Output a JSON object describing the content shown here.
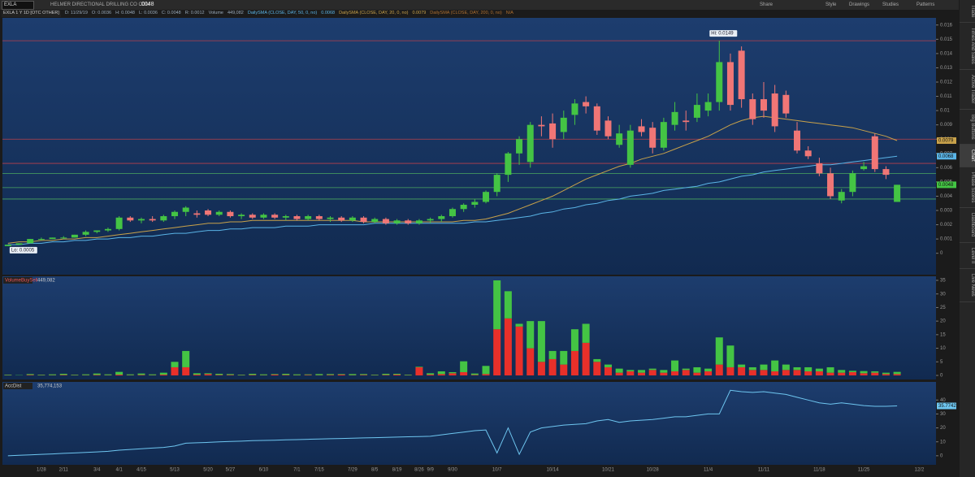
{
  "toolbar": {
    "symbol": "EXLA",
    "company": "HELMER DIRECTIONAL DRILLING CO COM",
    "last": ".0048",
    "buttons": [
      "Share",
      "Style",
      "Drawings",
      "Studies",
      "Patterns"
    ]
  },
  "header": {
    "items": [
      "EXLA 1 Y 1D [OTC OTHER]",
      "D: 11/29/19",
      "O: 0.0036",
      "H: 0.0048",
      "L: 0.0036",
      "C: 0.0048",
      "R: 0.0012",
      "Volume",
      "449,082"
    ],
    "sma200_name": "DailySMA (CLOSE, DAY, 200, 0, no)",
    "sma200_value": "N/A"
  },
  "sidebar": {
    "tabs": [
      "Trade",
      "Times And Sales",
      "Active Trader",
      "Big Buttons",
      "Chart",
      "Phase Scores",
      "Dashboard",
      "Level II",
      "Live News"
    ]
  },
  "chart_data": [
    {
      "type": "candlestick",
      "up_color": "#44c444",
      "down_color": "#f07676",
      "categories": [
        null,
        null,
        null,
        "1/28",
        null,
        "2/11",
        null,
        null,
        "3/4",
        null,
        "4/1",
        null,
        "4/15",
        null,
        null,
        "5/13",
        null,
        null,
        "5/20",
        null,
        "5/27",
        null,
        null,
        "6/10",
        null,
        null,
        "7/1",
        null,
        "7/15",
        null,
        null,
        "7/29",
        null,
        "8/5",
        null,
        "8/19",
        null,
        "8/26",
        "9/9",
        null,
        "9/30",
        null,
        null,
        null,
        "10/7",
        null,
        null,
        null,
        null,
        "10/14",
        null,
        null,
        null,
        null,
        "10/21",
        null,
        null,
        null,
        "10/28",
        null,
        null,
        null,
        null,
        "11/4",
        null,
        null,
        null,
        null,
        "11/11",
        null,
        null,
        null,
        null,
        "11/18",
        null,
        null,
        null,
        "11/25",
        null,
        null,
        null,
        null,
        "12/2",
        null
      ],
      "open": [
        0.0005,
        0.0006,
        0.0007,
        0.001,
        0.001,
        0.0011,
        0.0011,
        0.0013,
        0.0015,
        0.0016,
        0.0017,
        0.0025,
        0.0023,
        0.0024,
        0.0023,
        0.0026,
        0.0029,
        0.0028,
        0.003,
        0.0027,
        0.0029,
        0.0026,
        0.0027,
        0.0025,
        0.0027,
        0.0025,
        0.0026,
        0.0024,
        0.0026,
        0.0024,
        0.0025,
        0.0023,
        0.0025,
        0.0022,
        0.0024,
        0.0021,
        0.0023,
        0.0021,
        0.0023,
        0.0024,
        0.0026,
        0.0031,
        0.0034,
        0.0036,
        0.0043,
        0.0055,
        0.007,
        0.0064,
        0.009,
        0.0091,
        0.0085,
        0.0097,
        0.0106,
        0.0103,
        0.0093,
        0.0076,
        0.0062,
        0.0089,
        0.0088,
        0.0074,
        0.009,
        0.0093,
        0.0095,
        0.01,
        0.0106,
        0.0134,
        0.0142,
        0.0108,
        0.0108,
        0.0112,
        0.0111,
        0.0086,
        0.0072,
        0.0063,
        0.0056,
        0.0037,
        0.0043,
        0.0059,
        0.0082,
        0.0059,
        0.0036,
        null,
        null,
        null
      ],
      "high": [
        0.0006,
        0.0007,
        0.001,
        0.0011,
        0.0011,
        0.0012,
        0.0013,
        0.0016,
        0.0016,
        0.0018,
        0.0026,
        0.0026,
        0.0025,
        0.0026,
        0.0027,
        0.003,
        0.0033,
        0.003,
        0.0031,
        0.003,
        0.003,
        0.0028,
        0.0028,
        0.0028,
        0.0028,
        0.0027,
        0.0027,
        0.0027,
        0.0027,
        0.0026,
        0.0026,
        0.0026,
        0.0026,
        0.0025,
        0.0025,
        0.0024,
        0.0024,
        0.0024,
        0.0025,
        0.0027,
        0.0032,
        0.0035,
        0.0038,
        0.0044,
        0.0056,
        0.0071,
        0.0082,
        0.0092,
        0.0096,
        0.0098,
        0.01,
        0.0108,
        0.011,
        0.0105,
        0.0096,
        0.009,
        0.009,
        0.0094,
        0.0092,
        0.0095,
        0.0106,
        0.01,
        0.0112,
        0.0112,
        0.0149,
        0.014,
        0.0145,
        0.0112,
        0.012,
        0.0118,
        0.0114,
        0.0092,
        0.0075,
        0.0067,
        0.006,
        0.0045,
        0.0058,
        0.0064,
        0.0084,
        0.0061,
        0.0048,
        null,
        null,
        null
      ],
      "low": [
        0.0005,
        0.0006,
        0.0007,
        0.0009,
        0.001,
        0.001,
        0.0011,
        0.0012,
        0.0014,
        0.0015,
        0.0016,
        0.0022,
        0.0021,
        0.0022,
        0.0022,
        0.0024,
        0.0026,
        0.0025,
        0.0026,
        0.0026,
        0.0025,
        0.0024,
        0.0024,
        0.0024,
        0.0024,
        0.0023,
        0.0023,
        0.0023,
        0.0023,
        0.0022,
        0.0022,
        0.0022,
        0.0021,
        0.0021,
        0.002,
        0.002,
        0.002,
        0.002,
        0.0021,
        0.0022,
        0.0025,
        0.0029,
        0.0032,
        0.0035,
        0.004,
        0.005,
        0.0062,
        0.006,
        0.0082,
        0.0074,
        0.008,
        0.009,
        0.0098,
        0.0083,
        0.008,
        0.0074,
        0.006,
        0.0082,
        0.007,
        0.0072,
        0.0086,
        0.0086,
        0.0092,
        0.0096,
        0.01,
        0.01,
        0.0102,
        0.009,
        0.0095,
        0.0085,
        0.0095,
        0.007,
        0.0066,
        0.0054,
        0.0038,
        0.0035,
        0.004,
        0.0058,
        0.0057,
        0.0052,
        0.0036,
        null,
        null,
        null
      ],
      "close": [
        0.0006,
        0.0007,
        0.001,
        0.001,
        0.0011,
        0.0011,
        0.0013,
        0.0015,
        0.0016,
        0.0017,
        0.0025,
        0.0023,
        0.0024,
        0.0023,
        0.0026,
        0.0029,
        0.0032,
        0.0027,
        0.0027,
        0.0029,
        0.0026,
        0.0027,
        0.0025,
        0.0027,
        0.0025,
        0.0026,
        0.0024,
        0.0026,
        0.0024,
        0.0025,
        0.0023,
        0.0025,
        0.0022,
        0.0024,
        0.0021,
        0.0023,
        0.0021,
        0.0023,
        0.0024,
        0.0026,
        0.0031,
        0.0034,
        0.0036,
        0.0043,
        0.0055,
        0.007,
        0.008,
        0.009,
        0.0089,
        0.008,
        0.0095,
        0.0105,
        0.0103,
        0.0086,
        0.0082,
        0.0084,
        0.0086,
        0.0085,
        0.0074,
        0.0092,
        0.0099,
        0.0092,
        0.0104,
        0.0106,
        0.0134,
        0.0104,
        0.0108,
        0.0094,
        0.01,
        0.0089,
        0.0098,
        0.0072,
        0.0068,
        0.0056,
        0.004,
        0.0043,
        0.0056,
        0.0061,
        0.0059,
        0.0055,
        0.0048,
        null,
        null,
        null
      ],
      "series": [
        {
          "name": "DailySMA (CLOSE, DAY, 50, 0, no)",
          "color": "#5ab4e6",
          "values": [
            0.0006,
            0.0006,
            0.0007,
            0.0007,
            0.0008,
            0.0008,
            0.0009,
            0.0009,
            0.001,
            0.001,
            0.0011,
            0.0011,
            0.0012,
            0.0012,
            0.0013,
            0.0014,
            0.0014,
            0.0015,
            0.0016,
            0.0016,
            0.0017,
            0.0017,
            0.0018,
            0.0018,
            0.0018,
            0.0019,
            0.0019,
            0.0019,
            0.002,
            0.002,
            0.002,
            0.002,
            0.002,
            0.0021,
            0.0021,
            0.0021,
            0.0021,
            0.0021,
            0.0021,
            0.0021,
            0.0021,
            0.0021,
            0.0022,
            0.0022,
            0.0023,
            0.0024,
            0.0025,
            0.0026,
            0.0028,
            0.0029,
            0.0031,
            0.0032,
            0.0034,
            0.0035,
            0.0037,
            0.0038,
            0.004,
            0.0041,
            0.0042,
            0.0044,
            0.0045,
            0.0046,
            0.0047,
            0.0049,
            0.005,
            0.0052,
            0.0054,
            0.0055,
            0.0057,
            0.0058,
            0.0059,
            0.006,
            0.0061,
            0.0062,
            0.0062,
            0.0063,
            0.0064,
            0.0065,
            0.0066,
            0.0067,
            0.0068,
            null,
            null,
            null
          ]
        },
        {
          "name": "DailySMA (CLOSE, DAY, 20, 0, no)",
          "color": "#c9a24a",
          "values": [
            0.0007,
            0.0008,
            0.0008,
            0.0009,
            0.0009,
            0.001,
            0.001,
            0.0011,
            0.0011,
            0.0012,
            0.0013,
            0.0014,
            0.0015,
            0.0016,
            0.0017,
            0.0018,
            0.0019,
            0.002,
            0.0021,
            0.0021,
            0.0022,
            0.0022,
            0.0023,
            0.0023,
            0.0023,
            0.0023,
            0.0023,
            0.0023,
            0.0023,
            0.0023,
            0.0023,
            0.0023,
            0.0022,
            0.0022,
            0.0022,
            0.0022,
            0.0022,
            0.0022,
            0.0022,
            0.0022,
            0.0022,
            0.0023,
            0.0023,
            0.0024,
            0.0026,
            0.0028,
            0.0031,
            0.0034,
            0.0037,
            0.004,
            0.0044,
            0.0048,
            0.0052,
            0.0055,
            0.0058,
            0.0061,
            0.0063,
            0.0066,
            0.0068,
            0.007,
            0.0073,
            0.0076,
            0.0079,
            0.0082,
            0.0086,
            0.009,
            0.0093,
            0.0095,
            0.0096,
            0.0095,
            0.0094,
            0.0093,
            0.0092,
            0.0091,
            0.009,
            0.0089,
            0.0088,
            0.0086,
            0.0084,
            0.0082,
            0.0079,
            null,
            null,
            null
          ]
        }
      ],
      "levels": [
        {
          "value": 0.0149,
          "color": "#b8404a"
        },
        {
          "value": 0.008,
          "color": "#b8404a"
        },
        {
          "value": 0.0063,
          "color": "#b8404a"
        },
        {
          "value": 0.0056,
          "color": "#4aa860"
        },
        {
          "value": 0.0046,
          "color": "#4aa860"
        },
        {
          "value": 0.0038,
          "color": "#4aa860"
        }
      ],
      "annotations": [
        "Hi: 0.0149",
        "Lo: 0.0005"
      ],
      "ylim": [
        -0.0015,
        0.0165
      ],
      "yticks": [
        0,
        0.001,
        0.002,
        0.003,
        0.004,
        0.005,
        0.006,
        0.007,
        0.008,
        0.009,
        0.01,
        0.011,
        0.012,
        0.013,
        0.014,
        0.015,
        0.016
      ]
    },
    {
      "type": "stacked_bar",
      "title": "VolumeBuySell",
      "subtitle": "449,082",
      "series": [
        {
          "name": "Sell",
          "color": "#e8302a",
          "values": [
            0.1,
            0,
            0.2,
            0.1,
            0.1,
            0.2,
            0.1,
            0.1,
            0.2,
            0.1,
            0.3,
            0.1,
            0.2,
            0.1,
            0.3,
            3,
            3,
            0.3,
            0.5,
            0.2,
            0.2,
            0.1,
            0.2,
            0.1,
            0.3,
            0.2,
            0.1,
            0.2,
            0.1,
            0.2,
            0.3,
            0.1,
            0.2,
            0.1,
            0.2,
            0.3,
            0.1,
            3,
            0.3,
            0.5,
            0.8,
            1.2,
            0.2,
            0.5,
            17,
            21,
            18,
            10,
            5,
            6,
            4,
            9,
            12,
            5,
            3,
            1,
            1.5,
            1,
            2,
            1,
            1.5,
            2,
            1,
            1.5,
            4,
            3,
            3,
            2,
            2,
            1.5,
            2,
            2,
            1.5,
            1.5,
            1,
            1,
            1.2,
            0.8,
            1,
            0.5,
            0.5,
            null,
            null,
            null
          ]
        },
        {
          "name": "Buy",
          "color": "#44c444",
          "values": [
            0.2,
            0.1,
            0.3,
            0.2,
            0.3,
            0.4,
            0.2,
            0.3,
            0.5,
            0.3,
            1,
            0.3,
            0.5,
            0.3,
            0.7,
            2,
            6,
            0.5,
            0.3,
            0.4,
            0.3,
            0.2,
            0.4,
            0.3,
            0.2,
            0.4,
            0.3,
            0.2,
            0.4,
            0.3,
            0.2,
            0.4,
            0.3,
            0.2,
            0.4,
            0.3,
            0.2,
            0.2,
            0.5,
            1,
            0.4,
            4,
            0.5,
            3,
            18,
            10,
            1,
            10,
            15,
            3,
            5,
            8,
            7,
            1,
            1,
            1.5,
            0.5,
            1,
            0.5,
            1,
            4,
            0.5,
            2,
            1,
            10,
            8,
            1,
            1,
            2,
            4,
            2,
            1,
            1.5,
            1,
            2,
            1,
            0.5,
            0.8,
            0.5,
            0.5,
            0.8,
            null,
            null,
            null
          ]
        }
      ],
      "ylim": [
        -1.5,
        36.5
      ],
      "yticks": [
        0,
        5,
        10,
        15,
        20,
        25,
        30,
        35
      ]
    },
    {
      "type": "line",
      "title": "AccDist",
      "subtitle": "35,774,153",
      "color": "#6ec6f0",
      "values": [
        0,
        0.3,
        0.6,
        1,
        1.3,
        1.7,
        2,
        2.4,
        2.8,
        3.2,
        4,
        4.5,
        5,
        5.5,
        6,
        7,
        9,
        9.3,
        9.6,
        10,
        10.3,
        10.5,
        10.8,
        11,
        11.2,
        11.4,
        11.6,
        11.8,
        12,
        12.2,
        12.4,
        12.6,
        12.8,
        13,
        13.2,
        13.4,
        13.6,
        13.8,
        14,
        15,
        16,
        17,
        18,
        18.5,
        2,
        20,
        1,
        17,
        20,
        21,
        22,
        22.5,
        23,
        25,
        26,
        24,
        25,
        25.5,
        26,
        27,
        28,
        28,
        29,
        30,
        30,
        47,
        46,
        45.5,
        46,
        45,
        44,
        42,
        40,
        38,
        37,
        38,
        37,
        36,
        35.5,
        35.5,
        35.7742,
        null,
        null,
        null
      ],
      "ylim": [
        -6.5,
        53
      ],
      "yticks": [
        0,
        10,
        20,
        30,
        40
      ]
    }
  ]
}
